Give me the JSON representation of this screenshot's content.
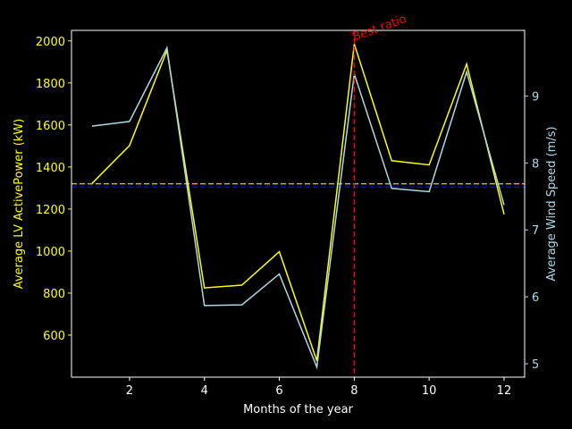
{
  "chart_data": {
    "type": "line",
    "xlabel": "Months of the year",
    "ylabel_left": "Average LV ActivePower (kW)",
    "ylabel_right": "Average Wind Speed (m/s)",
    "x": [
      1,
      2,
      3,
      4,
      5,
      6,
      7,
      8,
      9,
      10,
      11,
      12
    ],
    "xlim": [
      0.45,
      12.55
    ],
    "ylim_left": [
      400,
      2050
    ],
    "ylim_right": [
      4.8,
      9.98
    ],
    "x_ticks": [
      2,
      4,
      6,
      8,
      10,
      12
    ],
    "y_left_ticks": [
      600,
      800,
      1000,
      1200,
      1400,
      1600,
      1800,
      2000
    ],
    "y_right_ticks": [
      5,
      6,
      7,
      8,
      9
    ],
    "series": [
      {
        "axis": "left",
        "color": "#ffff00",
        "values": [
          1322,
          1502,
          1955,
          825,
          838,
          997,
          478,
          1985,
          1430,
          1410,
          1890,
          1175
        ]
      },
      {
        "axis": "right",
        "color": "#add8e6",
        "values": [
          8.55,
          8.62,
          9.72,
          5.87,
          5.88,
          6.34,
          4.95,
          9.33,
          7.62,
          7.57,
          9.36,
          7.37
        ]
      }
    ],
    "hlines": [
      {
        "axis": "left",
        "value": 1320,
        "color": "#ffa500",
        "style": "dashed"
      },
      {
        "axis": "left",
        "value": 1305,
        "color": "#0000ff",
        "style": "dashed"
      }
    ],
    "vline": {
      "x": 8,
      "color": "#ff0000",
      "style": "dashed"
    },
    "annotation": {
      "text": "Best ratio",
      "x": 8,
      "y_left": 2000,
      "color": "#ff0000",
      "rotation": 20
    },
    "grid": false,
    "axis_colors": {
      "left": "#ffff00",
      "right": "#add8e6",
      "bottom": "#ffffff"
    }
  }
}
